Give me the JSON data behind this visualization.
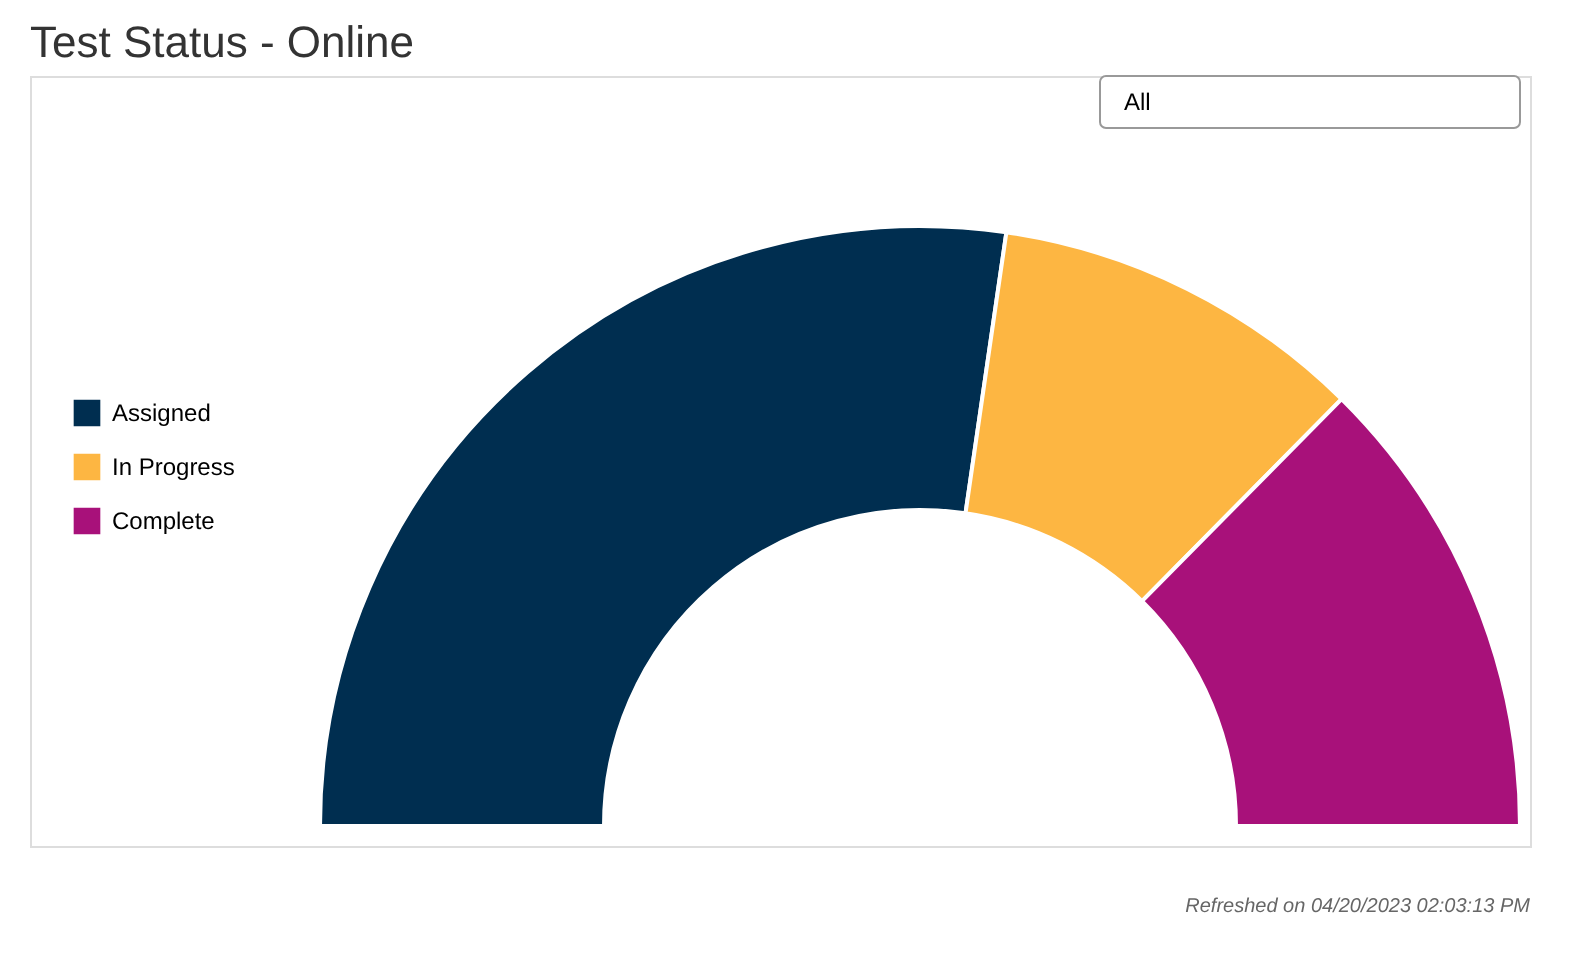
{
  "chart_data": {
    "type": "donut",
    "title": "Test Status - Online",
    "categories": [
      "Assigned",
      "In Progress",
      "Complete"
    ],
    "values": [
      54.6,
      20.2,
      25.2
    ],
    "colors": [
      "#002e50",
      "#fdb642",
      "#a8117a"
    ],
    "legend": "left",
    "annotations": [
      "All",
      "Refreshed on 04/20/2023 02:03:13 PM"
    ]
  }
}
